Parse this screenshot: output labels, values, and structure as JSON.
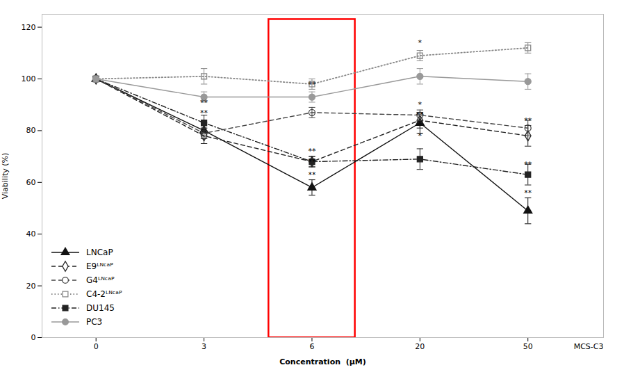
{
  "chart_data": {
    "type": "line",
    "categories": [
      "0",
      "3",
      "6",
      "20",
      "50"
    ],
    "xlabel": "Concentration  (μM)",
    "ylabel": "Viability (%)",
    "ylim": [
      0,
      125
    ],
    "yticks": [
      0,
      20,
      40,
      60,
      80,
      100,
      120
    ],
    "grid": false,
    "legend": "lower left",
    "series": [
      {
        "name": "LNCaP",
        "color": "#111111",
        "marker": "triangle",
        "line_style": "solid",
        "values": [
          100,
          80,
          58,
          83,
          49
        ],
        "errors": [
          1,
          3,
          3,
          4,
          5
        ]
      },
      {
        "name": "E9ᴸᴺᶜᵃᴾ",
        "color": "#222222",
        "marker": "diamond-open",
        "line_style": "dashed",
        "values": [
          100,
          78,
          68,
          84,
          78
        ],
        "errors": [
          1,
          3,
          2,
          3,
          4
        ]
      },
      {
        "name": "G4ᴸᴺᶜᵃᴾ",
        "color": "#444444",
        "marker": "circle-open",
        "line_style": "dashed",
        "values": [
          100,
          79,
          87,
          86,
          81
        ],
        "errors": [
          1,
          2,
          2,
          2,
          3
        ]
      },
      {
        "name": "C4-2ᴸᴺᶜᵃᴾ",
        "color": "#888888",
        "marker": "square-open",
        "line_style": "dotted",
        "values": [
          100,
          101,
          98,
          109,
          112
        ],
        "errors": [
          1,
          3,
          2,
          2,
          2
        ]
      },
      {
        "name": "DU145",
        "color": "#222222",
        "marker": "square",
        "line_style": "dashdot",
        "values": [
          100,
          83,
          68,
          69,
          63
        ],
        "errors": [
          1,
          3,
          2,
          4,
          4
        ]
      },
      {
        "name": "PC3",
        "color": "#999999",
        "marker": "circle",
        "line_style": "solid",
        "values": [
          100,
          93,
          93,
          101,
          99
        ],
        "errors": [
          1,
          2,
          2,
          3,
          3
        ]
      }
    ],
    "highlight": {
      "category": "6",
      "y": [
        0,
        123
      ],
      "color": "red"
    },
    "annotations": [
      {
        "x": "3",
        "y": 90,
        "text": "**"
      },
      {
        "x": "3",
        "y": 86,
        "text": "**"
      },
      {
        "x": "6",
        "y": 97,
        "text": "**"
      },
      {
        "x": "6",
        "y": 71,
        "text": "**"
      },
      {
        "x": "6",
        "y": 67,
        "text": "**"
      },
      {
        "x": "6",
        "y": 62,
        "text": "**"
      },
      {
        "x": "20",
        "y": 113,
        "text": "*"
      },
      {
        "x": "20",
        "y": 89,
        "text": "*"
      },
      {
        "x": "20",
        "y": 85,
        "text": "**"
      },
      {
        "x": "20",
        "y": 81,
        "text": "*"
      },
      {
        "x": "20",
        "y": 77,
        "text": "*"
      },
      {
        "x": "50",
        "y": 83,
        "text": "**"
      },
      {
        "x": "50",
        "y": 66,
        "text": "**"
      },
      {
        "x": "50",
        "y": 55,
        "text": "**"
      },
      {
        "text": "MCS-C3"
      }
    ]
  }
}
